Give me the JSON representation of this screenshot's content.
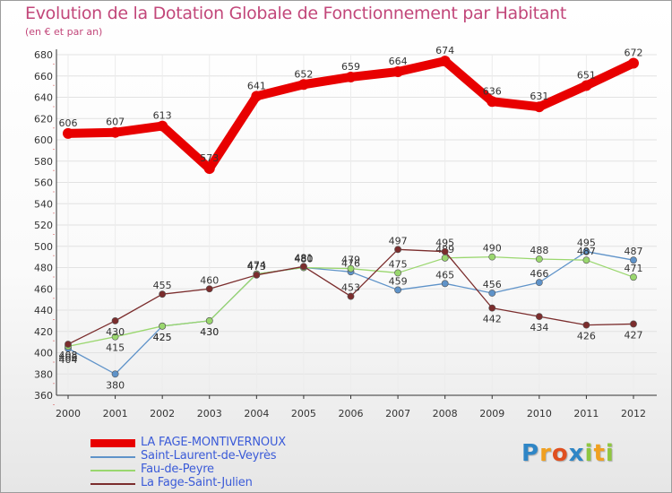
{
  "header": {
    "title": "Evolution de la Dotation Globale de Fonctionnement par Habitant",
    "subtitle": "(en € et par an)"
  },
  "chart_data": {
    "type": "line",
    "title": "Evolution de la Dotation Globale de Fonctionnement par Habitant",
    "subtitle": "(en € et par an)",
    "xlabel": "",
    "ylabel": "",
    "ylim": [
      360,
      680
    ],
    "ytick_step": 20,
    "grid": true,
    "legend_position": "bottom-left",
    "categories": [
      "2000",
      "2001",
      "2002",
      "2003",
      "2004",
      "2005",
      "2006",
      "2007",
      "2008",
      "2009",
      "2010",
      "2011",
      "2012"
    ],
    "series": [
      {
        "name": "LA FAGE-MONTIVERNOUX",
        "color": "#e80000",
        "style": "thick",
        "values": [
          606,
          607,
          613,
          573,
          641,
          652,
          659,
          664,
          674,
          636,
          631,
          651,
          672
        ]
      },
      {
        "name": "Saint-Laurent-de-Veyrès",
        "color": "#5f93c9",
        "style": "thin",
        "values": [
          404,
          380,
          425,
          430,
          474,
          480,
          476,
          459,
          465,
          456,
          466,
          495,
          487
        ]
      },
      {
        "name": "Fau-de-Peyre",
        "color": "#9ad76e",
        "style": "thin",
        "values": [
          406,
          415,
          425,
          430,
          474,
          480,
          479,
          475,
          489,
          490,
          488,
          487,
          471
        ]
      },
      {
        "name": "La Fage-Saint-Julien",
        "color": "#7b2d2d",
        "style": "thin",
        "values": [
          408,
          430,
          455,
          460,
          473,
          481,
          453,
          497,
          495,
          442,
          434,
          426,
          427
        ]
      }
    ]
  },
  "brand": {
    "letters": [
      "P",
      "r",
      "o",
      "x",
      "i",
      "t",
      "i"
    ],
    "colors": [
      "#2f86c6",
      "#f0a020",
      "#e05020",
      "#2f86c6",
      "#8fc640",
      "#f0a020",
      "#8fc640"
    ]
  }
}
